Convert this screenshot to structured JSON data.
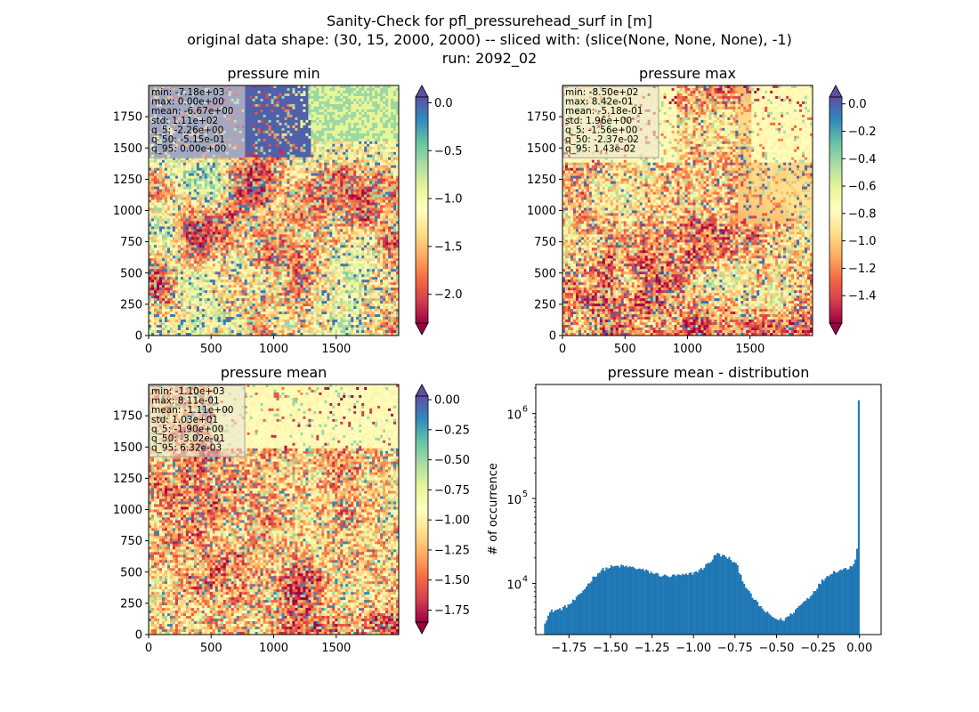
{
  "figure": {
    "title_lines": [
      "Sanity-Check for pfl_pressurehead_surf in [m]",
      "original data shape: (30, 15, 2000, 2000) -- sliced with: (slice(None, None, None), -1)",
      "run: 2092_02"
    ]
  },
  "colors": {
    "spectral": [
      "#9e0142",
      "#d53e4f",
      "#f46d43",
      "#fdae61",
      "#fee08b",
      "#ffffbf",
      "#e6f598",
      "#abdda4",
      "#66c2a5",
      "#3288bd",
      "#5e4fa2"
    ],
    "hist_bar": "#1f77b4",
    "stats_box_bg": "#e8e3d6",
    "stats_box_border": "#a0a0a0"
  },
  "chart_data": [
    {
      "type": "heatmap",
      "title": "pressure min",
      "colormap": "Spectral",
      "x_ticks": [
        "0",
        "500",
        "1000",
        "1500"
      ],
      "y_ticks": [
        "0",
        "250",
        "500",
        "750",
        "1000",
        "1250",
        "1500",
        "1750"
      ],
      "xlim": [
        0,
        2000
      ],
      "ylim": [
        0,
        2000
      ],
      "vmin": -2.3,
      "vmax": 0.06,
      "colorbar_ticks": [
        {
          "value": 0.0,
          "label": "0.0"
        },
        {
          "value": -0.5,
          "label": "−0.5"
        },
        {
          "value": -1.0,
          "label": "−1.0"
        },
        {
          "value": -1.5,
          "label": "−1.5"
        },
        {
          "value": -2.0,
          "label": "−2.0"
        }
      ],
      "colorbar_extend": "both",
      "stats": [
        "min: -7.18e+03",
        "max: 0.00e+00",
        "mean: -6.67e+00",
        "std: 1.11e+02",
        "q_5: -2.26e+00",
        "q_50: -5.15e-01",
        "q_95: 0.00e+00"
      ],
      "overview": "dominant low (dark red/orange) values across central region with a large max-value (purple) area in the upper-left"
    },
    {
      "type": "heatmap",
      "title": "pressure max",
      "colormap": "Spectral",
      "x_ticks": [
        "0",
        "500",
        "1000",
        "1500"
      ],
      "y_ticks": [
        "0",
        "250",
        "500",
        "750",
        "1000",
        "1250",
        "1500",
        "1750"
      ],
      "xlim": [
        0,
        2000
      ],
      "ylim": [
        0,
        2000
      ],
      "vmin": -1.6,
      "vmax": 0.05,
      "colorbar_ticks": [
        {
          "value": 0.0,
          "label": "0.0"
        },
        {
          "value": -0.2,
          "label": "−0.2"
        },
        {
          "value": -0.4,
          "label": "−0.4"
        },
        {
          "value": -0.6,
          "label": "−0.6"
        },
        {
          "value": -0.8,
          "label": "−0.8"
        },
        {
          "value": -1.0,
          "label": "−1.0"
        },
        {
          "value": -1.2,
          "label": "−1.2"
        },
        {
          "value": -1.4,
          "label": "−1.4"
        }
      ],
      "colorbar_extend": "both",
      "stats": [
        "min: -8.50e+02",
        "max: 8.42e-01",
        "mean: -5.18e-01",
        "std: 1.96e+00",
        "q_5: -1.56e+00",
        "q_50: -2.37e-02",
        "q_95: 1.43e-02"
      ]
    },
    {
      "type": "heatmap",
      "title": "pressure mean",
      "colormap": "Spectral",
      "x_ticks": [
        "0",
        "500",
        "1000",
        "1500"
      ],
      "y_ticks": [
        "0",
        "250",
        "500",
        "750",
        "1000",
        "1250",
        "1500",
        "1750"
      ],
      "xlim": [
        0,
        2000
      ],
      "ylim": [
        0,
        2000
      ],
      "vmin": -1.85,
      "vmax": 0.03,
      "colorbar_ticks": [
        {
          "value": 0.0,
          "label": "0.00"
        },
        {
          "value": -0.25,
          "label": "−0.25"
        },
        {
          "value": -0.5,
          "label": "−0.50"
        },
        {
          "value": -0.75,
          "label": "−0.75"
        },
        {
          "value": -1.0,
          "label": "−1.00"
        },
        {
          "value": -1.25,
          "label": "−1.25"
        },
        {
          "value": -1.5,
          "label": "−1.50"
        },
        {
          "value": -1.75,
          "label": "−1.75"
        }
      ],
      "colorbar_extend": "both",
      "stats": [
        "min: -1.10e+03",
        "max: 8.11e-01",
        "mean: -1.11e+00",
        "std: 1.03e+01",
        "q_5: -1.90e+00",
        "q_50: -3.02e-01",
        "q_95: 6.32e-03"
      ]
    },
    {
      "type": "bar",
      "title": "pressure mean - distribution",
      "xlabel": "",
      "ylabel": "# of occurrence",
      "y_scale": "log",
      "xlim": [
        -1.95,
        0.13
      ],
      "ylim": [
        2500,
        2200000
      ],
      "x_ticks": [
        {
          "value": -1.75,
          "label": "−1.75"
        },
        {
          "value": -1.5,
          "label": "−1.50"
        },
        {
          "value": -1.25,
          "label": "−1.25"
        },
        {
          "value": -1.0,
          "label": "−1.00"
        },
        {
          "value": -0.75,
          "label": "−0.75"
        },
        {
          "value": -0.5,
          "label": "−0.50"
        },
        {
          "value": -0.25,
          "label": "−0.25"
        },
        {
          "value": 0.0,
          "label": "0.00"
        }
      ],
      "y_ticks": [
        {
          "value": 10000,
          "base": "10",
          "exp": "4"
        },
        {
          "value": 100000,
          "base": "10",
          "exp": "5"
        },
        {
          "value": 1000000,
          "base": "10",
          "exp": "6"
        }
      ],
      "bin_range": [
        -1.9,
        0.0
      ],
      "bin_count": 190,
      "profile": [
        {
          "x": -1.9,
          "y": 3400
        },
        {
          "x": -1.86,
          "y": 4700
        },
        {
          "x": -1.8,
          "y": 5000
        },
        {
          "x": -1.75,
          "y": 5600
        },
        {
          "x": -1.7,
          "y": 6800
        },
        {
          "x": -1.65,
          "y": 9000
        },
        {
          "x": -1.6,
          "y": 12000
        },
        {
          "x": -1.55,
          "y": 14500
        },
        {
          "x": -1.5,
          "y": 15600
        },
        {
          "x": -1.45,
          "y": 16000
        },
        {
          "x": -1.4,
          "y": 15800
        },
        {
          "x": -1.35,
          "y": 15200
        },
        {
          "x": -1.3,
          "y": 14300
        },
        {
          "x": -1.25,
          "y": 13400
        },
        {
          "x": -1.2,
          "y": 12500
        },
        {
          "x": -1.15,
          "y": 12100
        },
        {
          "x": -1.1,
          "y": 12400
        },
        {
          "x": -1.05,
          "y": 12500
        },
        {
          "x": -1.0,
          "y": 13300
        },
        {
          "x": -0.95,
          "y": 14800
        },
        {
          "x": -0.9,
          "y": 18000
        },
        {
          "x": -0.86,
          "y": 22500
        },
        {
          "x": -0.82,
          "y": 21000
        },
        {
          "x": -0.78,
          "y": 19500
        },
        {
          "x": -0.74,
          "y": 16500
        },
        {
          "x": -0.7,
          "y": 10500
        },
        {
          "x": -0.66,
          "y": 7500
        },
        {
          "x": -0.62,
          "y": 6000
        },
        {
          "x": -0.58,
          "y": 4900
        },
        {
          "x": -0.54,
          "y": 4200
        },
        {
          "x": -0.5,
          "y": 3800
        },
        {
          "x": -0.46,
          "y": 3700
        },
        {
          "x": -0.42,
          "y": 4200
        },
        {
          "x": -0.38,
          "y": 5000
        },
        {
          "x": -0.34,
          "y": 6000
        },
        {
          "x": -0.3,
          "y": 7000
        },
        {
          "x": -0.26,
          "y": 8800
        },
        {
          "x": -0.22,
          "y": 11000
        },
        {
          "x": -0.18,
          "y": 13000
        },
        {
          "x": -0.14,
          "y": 14000
        },
        {
          "x": -0.1,
          "y": 14600
        },
        {
          "x": -0.06,
          "y": 15500
        },
        {
          "x": -0.03,
          "y": 17500
        },
        {
          "x": -0.01,
          "y": 30000
        },
        {
          "x": 0.0,
          "y": 1400000
        }
      ]
    }
  ]
}
